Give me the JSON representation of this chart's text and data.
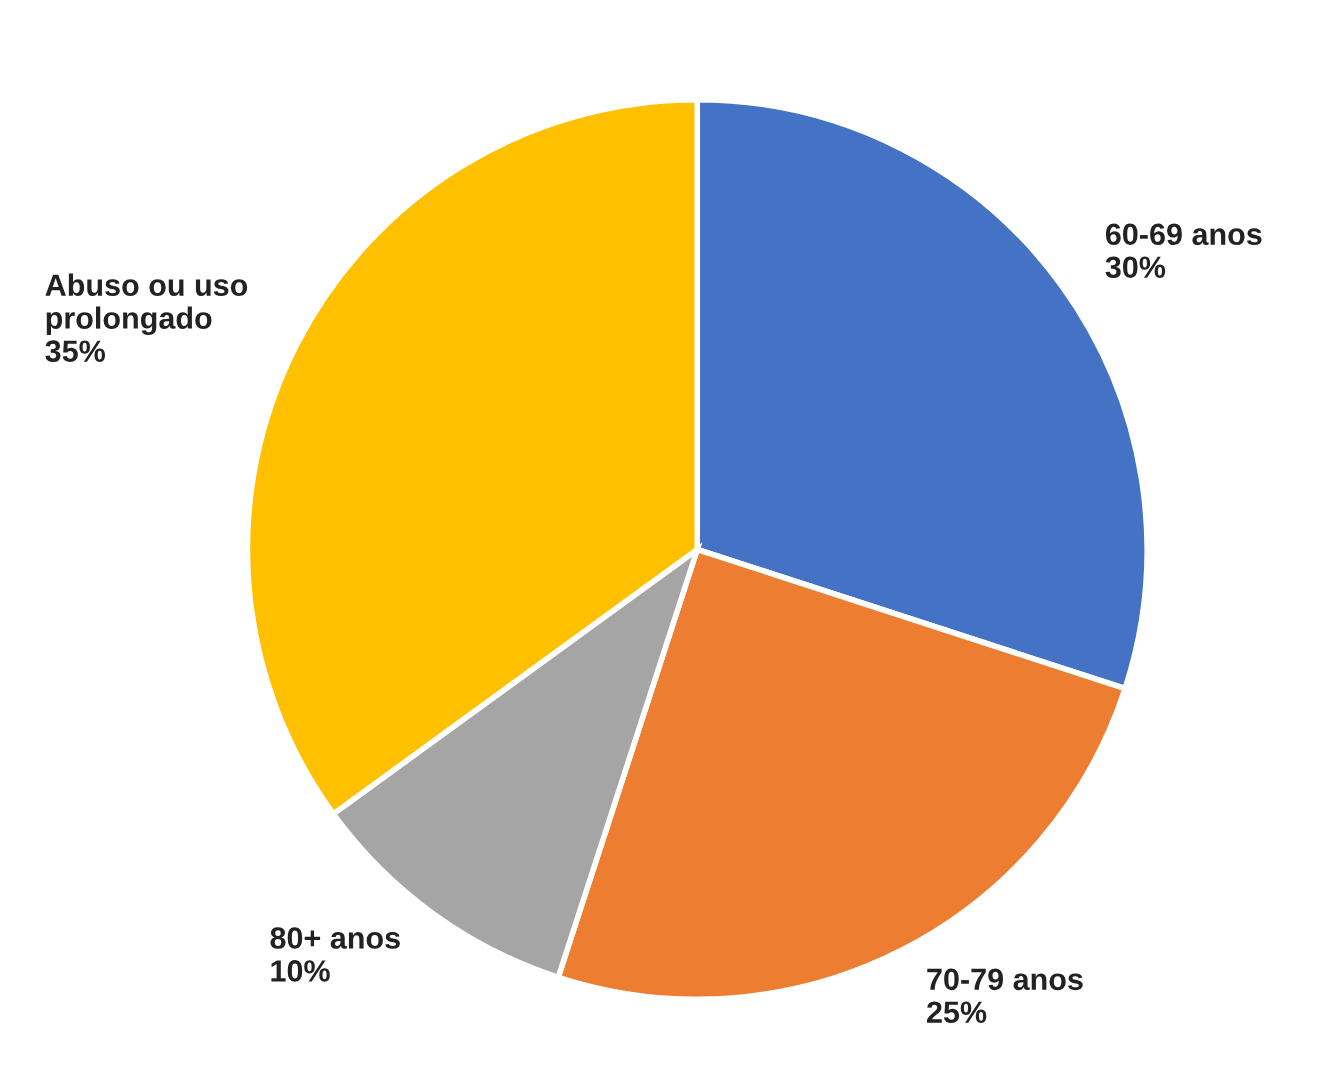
{
  "chart_data": {
    "type": "pie",
    "categories": [
      "60-69 anos",
      "70-79 anos",
      "80+ anos",
      "Abuso ou uso prolongado"
    ],
    "values": [
      30,
      25,
      10,
      35
    ],
    "value_labels": [
      "30%",
      "25%",
      "10%",
      "35%"
    ],
    "colors": [
      "#4472c4",
      "#ed7d31",
      "#a5a5a5",
      "#ffc000"
    ],
    "legend": false
  }
}
